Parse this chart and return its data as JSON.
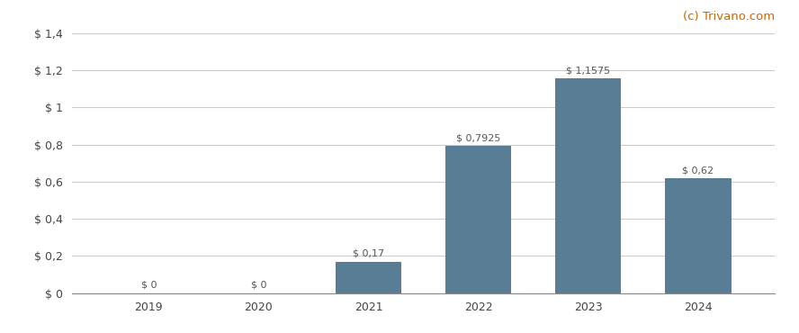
{
  "categories": [
    "2019",
    "2020",
    "2021",
    "2022",
    "2023",
    "2024"
  ],
  "values": [
    0,
    0,
    0.17,
    0.7925,
    1.1575,
    0.62
  ],
  "labels": [
    "$ 0",
    "$ 0",
    "$ 0,17",
    "$ 0,7925",
    "$ 1,1575",
    "$ 0,62"
  ],
  "bar_color": "#5a7d96",
  "ylim": [
    0,
    1.4
  ],
  "yticks": [
    0,
    0.2,
    0.4,
    0.6,
    0.8,
    1.0,
    1.2,
    1.4
  ],
  "ytick_labels": [
    "$ 0",
    "$ 0,2",
    "$ 0,4",
    "$ 0,6",
    "$ 0,8",
    "$ 1",
    "$ 1,2",
    "$ 1,4"
  ],
  "watermark": "(c) Trivano.com",
  "watermark_color": "#cc6600",
  "background_color": "#ffffff",
  "grid_color": "#cccccc",
  "label_fontsize": 8.0,
  "tick_fontsize": 9.0,
  "watermark_fontsize": 9.5,
  "bar_width": 0.6
}
